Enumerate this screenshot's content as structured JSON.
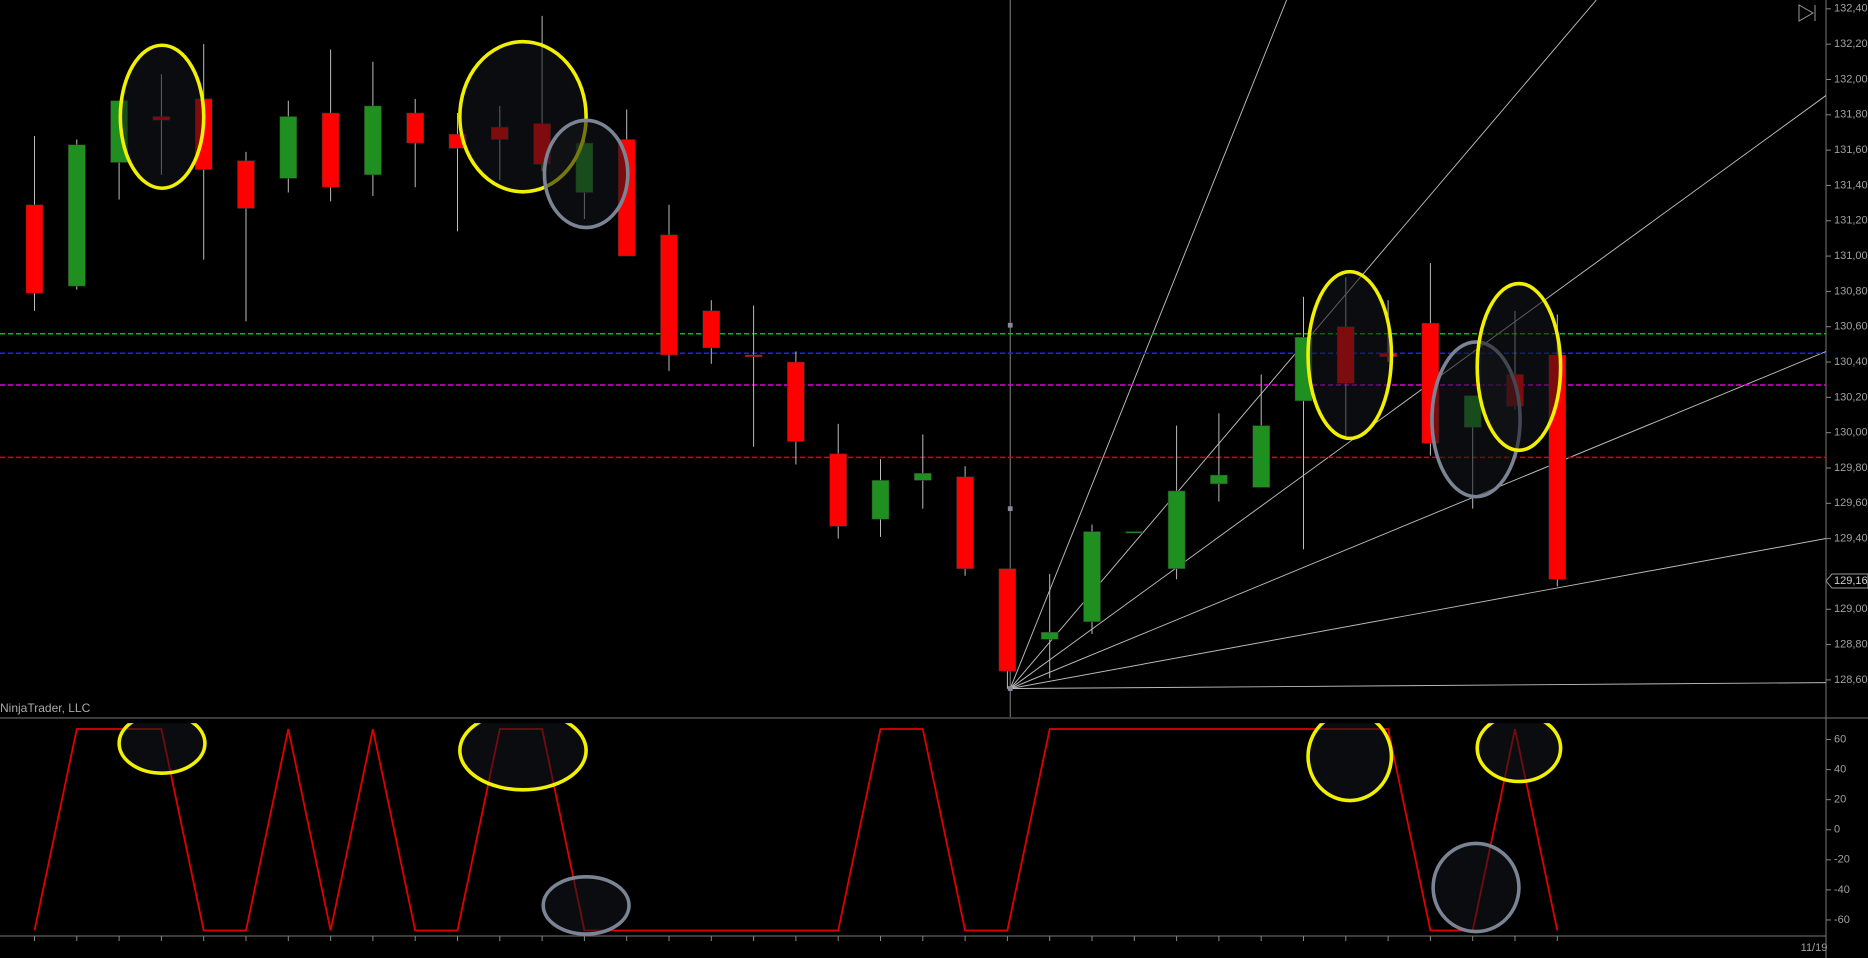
{
  "watermark": "NinjaTrader, LLC",
  "date_label": "11/19",
  "chart_data": [
    {
      "type": "candlestick",
      "up_color": "#1f8f1f",
      "down_color": "#ff0000",
      "open": [
        131.29,
        130.83,
        131.53,
        131.79,
        131.89,
        131.54,
        131.44,
        131.81,
        131.46,
        131.81,
        131.69,
        131.73,
        131.75,
        131.36,
        131.66,
        131.12,
        130.69,
        130.44,
        130.4,
        129.88,
        129.51,
        129.73,
        129.75,
        129.23,
        128.83,
        128.93,
        129.44,
        129.23,
        129.71,
        129.69,
        130.18,
        130.6,
        130.45,
        130.62,
        130.03,
        130.33,
        130.44
      ],
      "high": [
        131.68,
        131.66,
        131.88,
        132.03,
        132.2,
        131.59,
        131.88,
        132.17,
        132.1,
        131.89,
        131.81,
        131.85,
        132.36,
        131.78,
        131.83,
        131.29,
        130.75,
        130.72,
        130.46,
        130.05,
        129.85,
        129.99,
        129.81,
        129.23,
        129.2,
        129.48,
        129.44,
        130.04,
        130.11,
        130.33,
        130.77,
        130.88,
        130.75,
        130.96,
        130.21,
        130.69,
        130.67
      ],
      "low": [
        130.69,
        130.81,
        131.32,
        131.46,
        130.98,
        130.63,
        131.36,
        131.31,
        131.34,
        131.39,
        131.14,
        131.43,
        131.48,
        131.21,
        131.0,
        130.35,
        130.39,
        129.92,
        129.82,
        129.4,
        129.41,
        129.57,
        129.19,
        128.55,
        128.61,
        128.86,
        129.44,
        129.17,
        129.61,
        129.69,
        129.34,
        129.98,
        130.4,
        129.87,
        129.57,
        130.13,
        129.13
      ],
      "close": [
        130.79,
        131.63,
        131.88,
        131.77,
        131.49,
        131.27,
        131.79,
        131.39,
        131.85,
        131.64,
        131.61,
        131.66,
        131.52,
        131.64,
        131.0,
        130.44,
        130.48,
        130.43,
        129.95,
        129.47,
        129.73,
        129.77,
        129.23,
        128.65,
        128.87,
        129.44,
        129.44,
        129.67,
        129.76,
        130.04,
        130.54,
        130.28,
        130.43,
        129.94,
        130.21,
        130.15,
        129.17
      ],
      "ylim": [
        128.39,
        132.45
      ],
      "yticks": [
        {
          "value": 132.4,
          "label": "132,40"
        },
        {
          "value": 132.2,
          "label": "132,20"
        },
        {
          "value": 132.0,
          "label": "132,00"
        },
        {
          "value": 131.8,
          "label": "131,80"
        },
        {
          "value": 131.6,
          "label": "131,60"
        },
        {
          "value": 131.4,
          "label": "131,40"
        },
        {
          "value": 131.2,
          "label": "131,20"
        },
        {
          "value": 131.0,
          "label": "131,00"
        },
        {
          "value": 130.8,
          "label": "130,80"
        },
        {
          "value": 130.6,
          "label": "130,60"
        },
        {
          "value": 130.4,
          "label": "130,40"
        },
        {
          "value": 130.2,
          "label": "130,20"
        },
        {
          "value": 130.0,
          "label": "130,00"
        },
        {
          "value": 129.8,
          "label": "129,80"
        },
        {
          "value": 129.6,
          "label": "129,60"
        },
        {
          "value": 129.4,
          "label": "129,40"
        },
        {
          "value": 129.0,
          "label": "129,00"
        },
        {
          "value": 128.8,
          "label": "128,80"
        },
        {
          "value": 128.6,
          "label": "128,60"
        }
      ],
      "hlines": [
        {
          "value": 130.56,
          "color": "#00c000"
        },
        {
          "value": 130.45,
          "color": "#2020ff"
        },
        {
          "value": 130.27,
          "color": "#e000e0"
        },
        {
          "value": 129.86,
          "color": "#e00000"
        }
      ],
      "price_marker": {
        "value": 129.16,
        "label": "129,16"
      }
    },
    {
      "type": "line",
      "color": "#e00000",
      "values": [
        -67,
        67,
        67,
        67,
        -67,
        -67,
        67,
        -67,
        67,
        -67,
        -67,
        67,
        67,
        -67,
        -67,
        -67,
        -67,
        -67,
        -67,
        -67,
        67,
        67,
        -67,
        -67,
        67,
        67,
        67,
        67,
        67,
        67,
        67,
        67,
        67,
        -67,
        -67,
        67,
        -67
      ],
      "ylim": [
        -70,
        73
      ],
      "yticks": [
        60,
        40,
        20,
        0,
        -20,
        -40,
        -60
      ]
    }
  ]
}
